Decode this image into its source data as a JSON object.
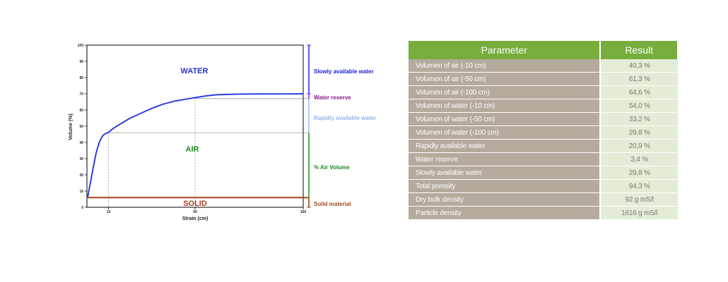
{
  "chart_data": {
    "type": "line",
    "xlabel": "Strain (cm)",
    "ylabel": "Volume (%)",
    "xlim": [
      0,
      100
    ],
    "ylim": [
      0,
      100
    ],
    "x_ticks": [
      "10",
      "50",
      "100"
    ],
    "y_ticks": [
      "100",
      "90",
      "80",
      "70",
      "60",
      "50",
      "40",
      "30",
      "20",
      "10",
      "0"
    ],
    "series": [
      {
        "x": [
          0,
          0.5,
          1,
          2,
          3,
          4,
          5,
          6,
          7,
          8,
          9,
          10,
          12,
          15,
          20,
          25,
          30,
          35,
          40,
          45,
          50,
          55,
          60,
          70,
          80,
          90,
          100
        ],
        "y": [
          6,
          7,
          11,
          18,
          25,
          32,
          37,
          41,
          43.5,
          45,
          45.7,
          46.2,
          48.5,
          51,
          55,
          58,
          61,
          63.5,
          65.3,
          66.5,
          67.6,
          68.7,
          69.4,
          69.8,
          69.9,
          69.9,
          70
        ]
      }
    ],
    "reference_lines": {
      "solid_line_y": 6,
      "water_reserve_y": 67,
      "air_volume_y": 46,
      "x_markers": [
        10,
        50
      ]
    },
    "region_labels": {
      "water": "WATER",
      "air": "AIR",
      "solid": "SOLID"
    },
    "side_labels": [
      {
        "text": "Slowly available water",
        "color": "#1a1adb"
      },
      {
        "text": "Water reserve",
        "color": "#8b1a8b"
      },
      {
        "text": "Rapidly available water",
        "color": "#8fb4e6"
      },
      {
        "text": "% Air Volume",
        "color": "#1a8a1a"
      },
      {
        "text": "Solid material",
        "color": "#a34a1a"
      }
    ],
    "colors": {
      "curve": "#2b3fe0",
      "solid": "#a5401c",
      "slowly": "#3030e8",
      "reserve": "#a030a0",
      "rapid": "#9ec0ec",
      "air": "#2a9a2a",
      "water_label": "#2535c8",
      "air_label": "#1e8a1e",
      "solid_label": "#a5401c"
    }
  },
  "table": {
    "headers": [
      "Parameter",
      "Result"
    ],
    "rows": [
      [
        "Volumen of air (-10 cm)",
        "40,3 %"
      ],
      [
        "Volumen of air (-50 cm)",
        "61,3 %"
      ],
      [
        "Volumen of air (-100 cm)",
        "64,6 %"
      ],
      [
        "Volumen of water (-10 cm)",
        "54,0 %"
      ],
      [
        "Volumen of water (-50 cm)",
        "33,2 %"
      ],
      [
        "Volumen of water (-100 cm)",
        "29,8 %"
      ],
      [
        "Rapidly available water",
        "20,9 %"
      ],
      [
        "Water reserve",
        "3,4 %"
      ],
      [
        "Slowly available water",
        "29,8 %"
      ],
      [
        "Total porosity",
        "94,3 %"
      ],
      [
        "Dry bulk density",
        "92 g mS/l"
      ],
      [
        "Particle density",
        "1616 g mS/l"
      ]
    ]
  }
}
